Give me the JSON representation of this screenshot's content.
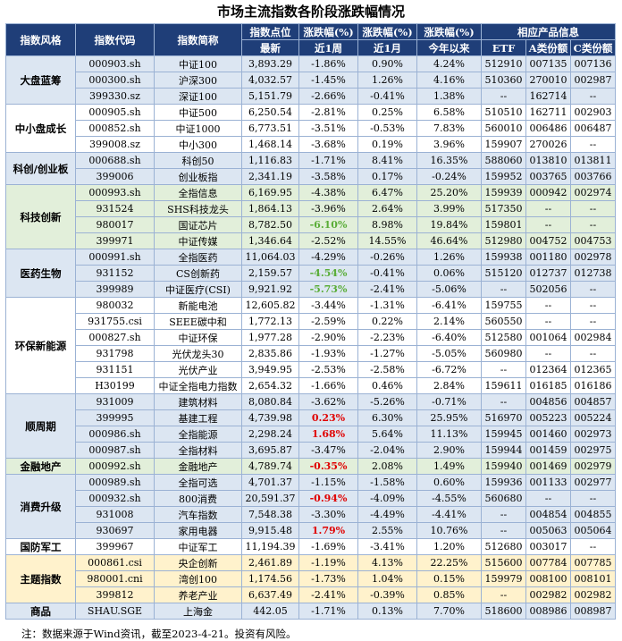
{
  "title": "市场主流指数各阶段涨跌幅情况",
  "headers": {
    "row1": [
      "指数风格",
      "指数代码",
      "指数简称",
      "指数点位",
      "涨跌幅(%)",
      "涨跌幅(%)",
      "涨跌幅(%)",
      "相应产品信息"
    ],
    "row2": [
      "最新",
      "近1周",
      "近1月",
      "今年以来",
      "ETF",
      "A类份额",
      "C类份额"
    ]
  },
  "groups": [
    {
      "category": "大盘蓝筹",
      "bg": "a",
      "rows": [
        {
          "code": "000903.sh",
          "name": "中证100",
          "level": "3,893.29",
          "w1": "-1.86%",
          "m1": "0.90%",
          "ytd": "4.24%",
          "etf": "512910",
          "a": "007135",
          "c": "007136"
        },
        {
          "code": "000300.sh",
          "name": "沪深300",
          "level": "4,032.57",
          "w1": "-1.45%",
          "m1": "1.26%",
          "ytd": "4.16%",
          "etf": "510360",
          "a": "270010",
          "c": "002987"
        },
        {
          "code": "399330.sz",
          "name": "深证100",
          "level": "5,151.79",
          "w1": "-2.66%",
          "m1": "-0.41%",
          "ytd": "1.38%",
          "etf": "--",
          "a": "162714",
          "c": "--"
        }
      ]
    },
    {
      "category": "中小盘成长",
      "bg": "b",
      "rows": [
        {
          "code": "000905.sh",
          "name": "中证500",
          "level": "6,250.54",
          "w1": "-2.81%",
          "m1": "0.25%",
          "ytd": "6.58%",
          "etf": "510510",
          "a": "162711",
          "c": "002903"
        },
        {
          "code": "000852.sh",
          "name": "中证1000",
          "level": "6,773.51",
          "w1": "-3.51%",
          "m1": "-0.53%",
          "ytd": "7.83%",
          "etf": "560010",
          "a": "006486",
          "c": "006487"
        },
        {
          "code": "399008.sz",
          "name": "中小300",
          "level": "1,468.14",
          "w1": "-3.68%",
          "m1": "0.19%",
          "ytd": "3.96%",
          "etf": "159907",
          "a": "270026",
          "c": "--"
        }
      ]
    },
    {
      "category": "科创/创业板",
      "bg": "a",
      "rows": [
        {
          "code": "000688.sh",
          "name": "科创50",
          "level": "1,116.83",
          "w1": "-1.71%",
          "m1": "8.41%",
          "ytd": "16.35%",
          "etf": "588060",
          "a": "013810",
          "c": "013811"
        },
        {
          "code": "399006",
          "name": "创业板指",
          "level": "2,341.19",
          "w1": "-3.58%",
          "m1": "0.17%",
          "ytd": "-0.24%",
          "etf": "159952",
          "a": "003765",
          "c": "003766"
        }
      ]
    },
    {
      "category": "科技创新",
      "bg": "c",
      "rows": [
        {
          "code": "000993.sh",
          "name": "全指信息",
          "level": "6,169.95",
          "w1": "-4.38%",
          "m1": "6.47%",
          "ytd": "25.20%",
          "etf": "159939",
          "a": "000942",
          "c": "002974"
        },
        {
          "code": "931524",
          "name": "SHS科技龙头",
          "level": "1,864.13",
          "w1": "-3.96%",
          "m1": "2.64%",
          "ytd": "3.99%",
          "etf": "517350",
          "a": "--",
          "c": "--"
        },
        {
          "code": "980017",
          "name": "国证芯片",
          "level": "8,782.50",
          "w1": "-6.10%",
          "w1c": "green",
          "m1": "8.98%",
          "ytd": "19.84%",
          "etf": "159801",
          "a": "--",
          "c": "--"
        },
        {
          "code": "399971",
          "name": "中证传媒",
          "level": "1,346.64",
          "w1": "-2.52%",
          "m1": "14.55%",
          "ytd": "46.64%",
          "etf": "512980",
          "a": "004752",
          "c": "004753"
        }
      ]
    },
    {
      "category": "医药生物",
      "bg": "a",
      "rows": [
        {
          "code": "000991.sh",
          "name": "全指医药",
          "level": "11,064.03",
          "w1": "-4.29%",
          "m1": "-0.26%",
          "ytd": "1.26%",
          "etf": "159938",
          "a": "001180",
          "c": "002978"
        },
        {
          "code": "931152",
          "name": "CS创新药",
          "level": "2,159.57",
          "w1": "-4.54%",
          "w1c": "green",
          "m1": "-0.41%",
          "ytd": "0.06%",
          "etf": "515120",
          "a": "012737",
          "c": "012738"
        },
        {
          "code": "399989",
          "name": "中证医疗(CSI)",
          "level": "9,921.92",
          "w1": "-5.73%",
          "w1c": "green",
          "m1": "-2.41%",
          "ytd": "-5.06%",
          "etf": "--",
          "a": "502056",
          "c": "--"
        }
      ]
    },
    {
      "category": "环保新能源",
      "bg": "b",
      "rows": [
        {
          "code": "980032",
          "name": "新能电池",
          "level": "12,605.82",
          "w1": "-3.44%",
          "m1": "-1.31%",
          "ytd": "-6.41%",
          "etf": "159755",
          "a": "--",
          "c": "--"
        },
        {
          "code": "931755.csi",
          "name": "SEEE碳中和",
          "level": "1,772.13",
          "w1": "-2.59%",
          "m1": "0.22%",
          "ytd": "2.14%",
          "etf": "560550",
          "a": "--",
          "c": "--"
        },
        {
          "code": "000827.sh",
          "name": "中证环保",
          "level": "1,977.28",
          "w1": "-2.90%",
          "m1": "-2.23%",
          "ytd": "-6.40%",
          "etf": "512580",
          "a": "001064",
          "c": "002984"
        },
        {
          "code": "931798",
          "name": "光伏龙头30",
          "level": "2,835.86",
          "w1": "-1.93%",
          "m1": "-1.27%",
          "ytd": "-5.05%",
          "etf": "560980",
          "a": "--",
          "c": "--"
        },
        {
          "code": "931151",
          "name": "光伏产业",
          "level": "3,949.95",
          "w1": "-2.53%",
          "m1": "-2.58%",
          "ytd": "-6.72%",
          "etf": "--",
          "a": "012364",
          "c": "012365"
        },
        {
          "code": "H30199",
          "name": "中证全指电力指数",
          "level": "2,654.32",
          "w1": "-1.66%",
          "m1": "0.46%",
          "ytd": "2.84%",
          "etf": "159611",
          "a": "016185",
          "c": "016186"
        }
      ]
    },
    {
      "category": "顺周期",
      "bg": "a",
      "rows": [
        {
          "code": "931009",
          "name": "建筑材料",
          "level": "8,080.84",
          "w1": "-3.62%",
          "m1": "-5.26%",
          "ytd": "-0.71%",
          "etf": "--",
          "a": "004856",
          "c": "004857"
        },
        {
          "code": "399995",
          "name": "基建工程",
          "level": "4,739.98",
          "w1": "0.23%",
          "w1c": "red",
          "m1": "6.30%",
          "ytd": "25.95%",
          "etf": "516970",
          "a": "005223",
          "c": "005224"
        },
        {
          "code": "000986.sh",
          "name": "全指能源",
          "level": "2,298.24",
          "w1": "1.68%",
          "w1c": "red",
          "m1": "5.64%",
          "ytd": "11.13%",
          "etf": "159945",
          "a": "001460",
          "c": "002973"
        },
        {
          "code": "000987.sh",
          "name": "全指材料",
          "level": "3,695.87",
          "w1": "-3.47%",
          "m1": "-2.04%",
          "ytd": "2.90%",
          "etf": "159944",
          "a": "001459",
          "c": "002975"
        }
      ]
    },
    {
      "category": "金融地产",
      "bg": "c",
      "rows": [
        {
          "code": "000992.sh",
          "name": "金融地产",
          "level": "4,789.74",
          "w1": "-0.35%",
          "w1c": "red",
          "m1": "2.08%",
          "ytd": "1.49%",
          "etf": "159940",
          "a": "001469",
          "c": "002979"
        }
      ]
    },
    {
      "category": "消费升级",
      "bg": "a",
      "rows": [
        {
          "code": "000989.sh",
          "name": "全指可选",
          "level": "4,701.37",
          "w1": "-1.15%",
          "m1": "-1.58%",
          "ytd": "0.60%",
          "etf": "159936",
          "a": "001133",
          "c": "002977"
        },
        {
          "code": "000932.sh",
          "name": "800消费",
          "level": "20,591.37",
          "w1": "-0.94%",
          "w1c": "red",
          "m1": "-4.09%",
          "ytd": "-4.55%",
          "etf": "560680",
          "a": "--",
          "c": "--"
        },
        {
          "code": "931008",
          "name": "汽车指数",
          "level": "7,548.38",
          "w1": "-3.30%",
          "m1": "-4.49%",
          "ytd": "-4.41%",
          "etf": "--",
          "a": "004854",
          "c": "004855"
        },
        {
          "code": "930697",
          "name": "家用电器",
          "level": "9,915.48",
          "w1": "1.79%",
          "w1c": "red",
          "m1": "2.55%",
          "ytd": "10.76%",
          "etf": "--",
          "a": "005063",
          "c": "005064"
        }
      ]
    },
    {
      "category": "国防军工",
      "bg": "b",
      "rows": [
        {
          "code": "399967",
          "name": "中证军工",
          "level": "11,194.39",
          "w1": "-1.69%",
          "m1": "-3.41%",
          "ytd": "1.20%",
          "etf": "512680",
          "a": "003017",
          "c": "--"
        }
      ]
    },
    {
      "category": "主题指数",
      "bg": "d",
      "rows": [
        {
          "code": "000861.csi",
          "name": "央企创新",
          "level": "2,461.89",
          "w1": "-1.19%",
          "m1": "4.13%",
          "ytd": "22.25%",
          "etf": "515600",
          "a": "007784",
          "c": "007785"
        },
        {
          "code": "980001.cni",
          "name": "湾创100",
          "level": "1,174.56",
          "w1": "-1.73%",
          "m1": "1.04%",
          "ytd": "0.15%",
          "etf": "159979",
          "a": "008100",
          "c": "008101"
        },
        {
          "code": "399812",
          "name": "养老产业",
          "level": "6,637.49",
          "w1": "-2.41%",
          "m1": "-0.39%",
          "ytd": "0.85%",
          "etf": "--",
          "a": "002982",
          "c": "002982"
        }
      ]
    },
    {
      "category": "商品",
      "bg": "e",
      "rows": [
        {
          "code": "SHAU.SGE",
          "name": "上海金",
          "level": "442.05",
          "w1": "-1.71%",
          "m1": "0.13%",
          "ytd": "7.70%",
          "etf": "518600",
          "a": "008986",
          "c": "008987"
        }
      ]
    }
  ],
  "footnote": "注：数据来源于Wind资讯，截至2023-4-21。投资有风险。"
}
